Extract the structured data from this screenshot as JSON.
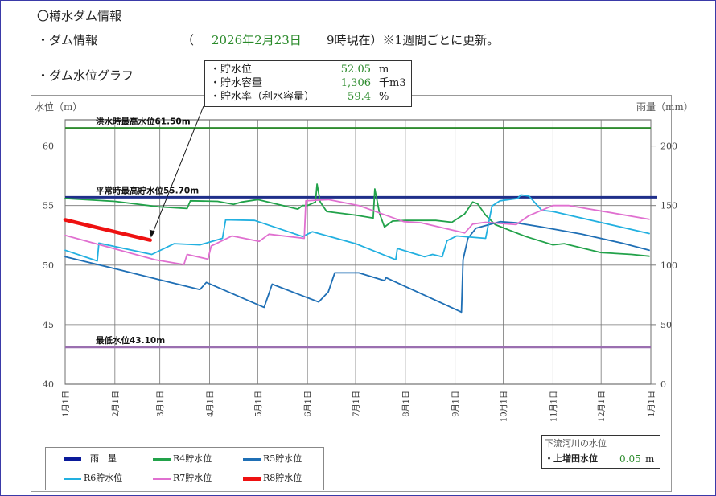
{
  "header": {
    "title": "〇樽水ダム情報",
    "dam_info_label": "・ダム情報",
    "paren_open": "（",
    "date": "2026年2月23日",
    "time_suffix": "9時現在）※1週間ごとに更新。",
    "graph_label": "・ダム水位グラフ"
  },
  "info_box": {
    "rows": [
      {
        "label": "・貯水位",
        "value": "52.05",
        "unit": "m"
      },
      {
        "label": "・貯水容量",
        "value": "1,306",
        "unit": "千m3"
      },
      {
        "label": "・貯水率（利水容量）",
        "value": "59.4",
        "unit": "%"
      }
    ]
  },
  "downstream": {
    "title": "下流河川の水位",
    "label": "・上増田水位",
    "value": "0.05",
    "unit": "m"
  },
  "chart_data": {
    "type": "line",
    "ylabel": "水位（m）",
    "y2label": "雨量（mm）",
    "ylim": [
      40,
      62.2
    ],
    "y2lim": [
      0,
      222
    ],
    "yticks": [
      40,
      45,
      50,
      55,
      60
    ],
    "y2ticks": [
      0,
      50,
      100,
      150,
      200
    ],
    "xticks": [
      "1月1日",
      "2月1日",
      "3月1日",
      "4月1日",
      "5月1日",
      "6月1日",
      "7月1日",
      "8月1日",
      "9月1日",
      "10月1日",
      "11月1日",
      "12月1日",
      "1月1日"
    ],
    "grid": true,
    "legend_position": "bottom-left",
    "reference_lines": [
      {
        "label": "洪水時最高水位61.50m",
        "value": 61.5,
        "color": "#2e8b2e"
      },
      {
        "label": "平常時最高貯水位55.70m",
        "value": 55.7,
        "color": "#1f2f8a"
      },
      {
        "label": "最低水位43.10m",
        "value": 43.1,
        "color": "#9a6fb0"
      }
    ],
    "series": [
      {
        "name": "雨　量",
        "color": "#0a1a9a",
        "points": []
      },
      {
        "name": "R4貯水位",
        "color": "#22a24a",
        "points": [
          [
            "01-01",
            55.6
          ],
          [
            "02-01",
            55.35
          ],
          [
            "02-28",
            54.9
          ],
          [
            "03-18",
            54.75
          ],
          [
            "03-20",
            55.4
          ],
          [
            "04-06",
            55.35
          ],
          [
            "04-16",
            55.1
          ],
          [
            "04-21",
            55.3
          ],
          [
            "05-01",
            55.5
          ],
          [
            "05-12",
            55.15
          ],
          [
            "05-26",
            54.7
          ],
          [
            "05-29",
            55.0
          ],
          [
            "06-01",
            55.0
          ],
          [
            "06-06",
            55.3
          ],
          [
            "06-07",
            56.8
          ],
          [
            "06-09",
            55.3
          ],
          [
            "06-13",
            54.5
          ],
          [
            "07-01",
            54.2
          ],
          [
            "07-12",
            53.95
          ],
          [
            "07-13",
            56.4
          ],
          [
            "07-16",
            54.3
          ],
          [
            "07-19",
            53.2
          ],
          [
            "07-24",
            53.7
          ],
          [
            "08-01",
            53.75
          ],
          [
            "08-20",
            53.75
          ],
          [
            "08-30",
            53.6
          ],
          [
            "09-07",
            54.3
          ],
          [
            "09-12",
            55.3
          ],
          [
            "09-15",
            55.15
          ],
          [
            "09-20",
            54.2
          ],
          [
            "09-26",
            53.4
          ],
          [
            "10-15",
            52.4
          ],
          [
            "11-01",
            51.7
          ],
          [
            "11-08",
            51.8
          ],
          [
            "12-01",
            51.05
          ],
          [
            "12-20",
            50.9
          ],
          [
            "12-31",
            50.75
          ]
        ]
      },
      {
        "name": "R5貯水位",
        "color": "#1f6fb5",
        "points": [
          [
            "01-01",
            50.7
          ],
          [
            "02-01",
            49.7
          ],
          [
            "02-28",
            48.8
          ],
          [
            "03-26",
            47.95
          ],
          [
            "03-30",
            48.55
          ],
          [
            "05-05",
            46.45
          ],
          [
            "05-10",
            48.4
          ],
          [
            "06-08",
            46.9
          ],
          [
            "06-14",
            47.75
          ],
          [
            "06-18",
            49.35
          ],
          [
            "07-03",
            49.35
          ],
          [
            "07-19",
            48.7
          ],
          [
            "07-20",
            48.95
          ],
          [
            "09-05",
            46.05
          ],
          [
            "09-06",
            50.45
          ],
          [
            "09-09",
            52.25
          ],
          [
            "09-14",
            53.1
          ],
          [
            "09-29",
            53.65
          ],
          [
            "10-09",
            53.55
          ],
          [
            "10-25",
            53.2
          ],
          [
            "11-19",
            52.6
          ],
          [
            "12-14",
            51.85
          ],
          [
            "12-31",
            51.25
          ]
        ]
      },
      {
        "name": "R6貯水位",
        "color": "#22b0e0",
        "points": [
          [
            "01-01",
            51.25
          ],
          [
            "01-21",
            50.35
          ],
          [
            "01-22",
            51.85
          ],
          [
            "02-24",
            50.9
          ],
          [
            "03-10",
            51.8
          ],
          [
            "03-26",
            51.7
          ],
          [
            "04-09",
            52.25
          ],
          [
            "04-11",
            53.8
          ],
          [
            "04-29",
            53.75
          ],
          [
            "05-29",
            52.4
          ],
          [
            "06-04",
            52.8
          ],
          [
            "07-01",
            51.8
          ],
          [
            "07-26",
            50.45
          ],
          [
            "07-27",
            51.4
          ],
          [
            "08-13",
            50.7
          ],
          [
            "08-18",
            50.9
          ],
          [
            "08-24",
            50.7
          ],
          [
            "08-27",
            52.05
          ],
          [
            "09-02",
            52.45
          ],
          [
            "09-20",
            52.25
          ],
          [
            "09-24",
            54.95
          ],
          [
            "09-29",
            55.4
          ],
          [
            "10-10",
            55.6
          ],
          [
            "10-12",
            55.9
          ],
          [
            "10-17",
            55.8
          ],
          [
            "10-25",
            54.6
          ],
          [
            "11-01",
            54.5
          ],
          [
            "12-31",
            52.65
          ]
        ]
      },
      {
        "name": "R7貯水位",
        "color": "#e070d0",
        "points": [
          [
            "01-01",
            52.5
          ],
          [
            "02-26",
            50.45
          ],
          [
            "03-16",
            50.05
          ],
          [
            "03-18",
            50.9
          ],
          [
            "03-31",
            50.5
          ],
          [
            "04-02",
            51.6
          ],
          [
            "04-15",
            52.45
          ],
          [
            "05-02",
            52.0
          ],
          [
            "05-08",
            52.6
          ],
          [
            "05-30",
            52.25
          ],
          [
            "05-31",
            55.4
          ],
          [
            "06-14",
            55.5
          ],
          [
            "07-03",
            55.0
          ],
          [
            "07-31",
            53.65
          ],
          [
            "08-11",
            53.55
          ],
          [
            "09-07",
            52.7
          ],
          [
            "09-12",
            53.45
          ],
          [
            "09-20",
            53.6
          ],
          [
            "10-09",
            53.4
          ],
          [
            "10-17",
            54.15
          ],
          [
            "11-01",
            55.0
          ],
          [
            "11-11",
            55.0
          ],
          [
            "12-31",
            53.85
          ]
        ]
      },
      {
        "name": "R8貯水位",
        "color": "#ee1111",
        "points": [
          [
            "01-01",
            53.8
          ],
          [
            "02-01",
            52.8
          ],
          [
            "02-23",
            52.1
          ]
        ]
      }
    ]
  }
}
